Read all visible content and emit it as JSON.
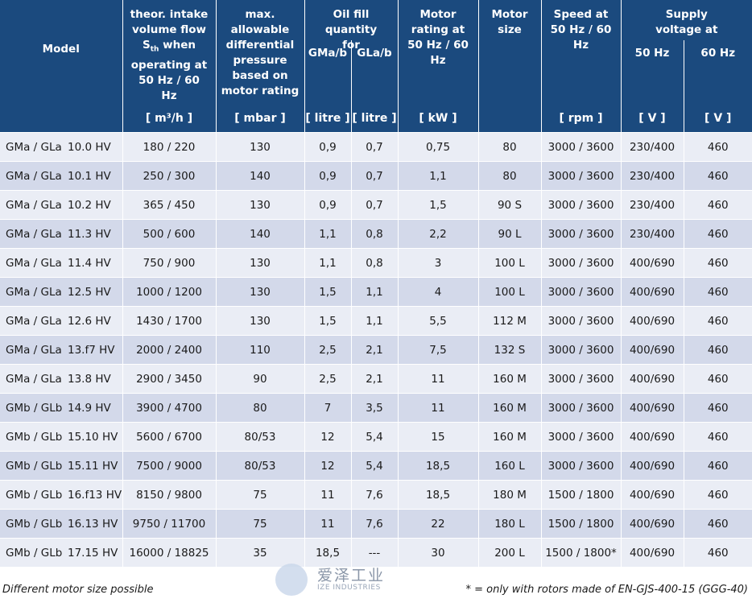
{
  "headers": {
    "model": "Model",
    "flow": "theor. intake volume flow S",
    "flow_sub": "th",
    "flow_rest": "when operating at 50 Hz / 60 Hz",
    "flow_unit": "[ m³/h ]",
    "pressure": "max. allowable differential pressure based on motor rating",
    "pressure_unit": "[ mbar ]",
    "oil": "Oil fill quantity for",
    "oil_a": "GMa/b",
    "oil_a_unit": "[ litre ]",
    "oil_b": "GLa/b",
    "oil_b_unit": "[ litre ]",
    "rating": "Motor rating at 50 Hz / 60 Hz",
    "rating_unit": "[ kW ]",
    "size": "Motor size",
    "speed": "Speed at 50 Hz / 60 Hz",
    "speed_unit": "[ rpm ]",
    "voltage": "Supply voltage at",
    "volt_50": "50 Hz",
    "volt_50_unit": "[ V ]",
    "volt_60": "60 Hz",
    "volt_60_unit": "[ V ]"
  },
  "rows": [
    [
      "GMa / GLa",
      "10.0 HV",
      "180 / 220",
      "130",
      "0,9",
      "0,7",
      "0,75",
      "80",
      "3000 / 3600",
      "230/400",
      "460"
    ],
    [
      "GMa / GLa",
      "10.1 HV",
      "250 / 300",
      "140",
      "0,9",
      "0,7",
      "1,1",
      "80",
      "3000 / 3600",
      "230/400",
      "460"
    ],
    [
      "GMa / GLa",
      "10.2 HV",
      "365 / 450",
      "130",
      "0,9",
      "0,7",
      "1,5",
      "90 S",
      "3000 / 3600",
      "230/400",
      "460"
    ],
    [
      "GMa / GLa",
      "11.3 HV",
      "500 / 600",
      "140",
      "1,1",
      "0,8",
      "2,2",
      "90 L",
      "3000 / 3600",
      "230/400",
      "460"
    ],
    [
      "GMa / GLa",
      "11.4 HV",
      "750 / 900",
      "130",
      "1,1",
      "0,8",
      "3",
      "100 L",
      "3000 / 3600",
      "400/690",
      "460"
    ],
    [
      "GMa / GLa",
      "12.5 HV",
      "1000 / 1200",
      "130",
      "1,5",
      "1,1",
      "4",
      "100 L",
      "3000 / 3600",
      "400/690",
      "460"
    ],
    [
      "GMa / GLa",
      "12.6 HV",
      "1430 / 1700",
      "130",
      "1,5",
      "1,1",
      "5,5",
      "112 M",
      "3000 / 3600",
      "400/690",
      "460"
    ],
    [
      "GMa / GLa",
      "13.f7 HV",
      "2000 / 2400",
      "110",
      "2,5",
      "2,1",
      "7,5",
      "132 S",
      "3000 / 3600",
      "400/690",
      "460"
    ],
    [
      "GMa / GLa",
      "13.8 HV",
      "2900 / 3450",
      "90",
      "2,5",
      "2,1",
      "11",
      "160 M",
      "3000 / 3600",
      "400/690",
      "460"
    ],
    [
      "GMb / GLb",
      "14.9 HV",
      "3900 / 4700",
      "80",
      "7",
      "3,5",
      "11",
      "160 M",
      "3000 / 3600",
      "400/690",
      "460"
    ],
    [
      "GMb / GLb",
      "15.10 HV",
      "5600 / 6700",
      "80/53",
      "12",
      "5,4",
      "15",
      "160 M",
      "3000 / 3600",
      "400/690",
      "460"
    ],
    [
      "GMb / GLb",
      "15.11 HV",
      "7500 / 9000",
      "80/53",
      "12",
      "5,4",
      "18,5",
      "160 L",
      "3000 / 3600",
      "400/690",
      "460"
    ],
    [
      "GMb / GLb",
      "16.f13 HV",
      "8150 / 9800",
      "75",
      "11",
      "7,6",
      "18,5",
      "180 M",
      "1500 / 1800",
      "400/690",
      "460"
    ],
    [
      "GMb / GLb",
      "16.13 HV",
      "9750 / 11700",
      "75",
      "11",
      "7,6",
      "22",
      "180 L",
      "1500 / 1800",
      "400/690",
      "460"
    ],
    [
      "GMb / GLb",
      "17.15 HV",
      "16000 / 18825",
      "35",
      "18,5",
      "---",
      "30",
      "200 L",
      "1500 / 1800*",
      "400/690",
      "460"
    ]
  ],
  "footer": {
    "left": "Different motor size possible",
    "right": "* = only with rotors made of EN-GJS-400-15 (GGG-40)"
  },
  "watermark": {
    "cn": "爱泽工业",
    "en": "IZE INDUSTRIES"
  },
  "colors": {
    "header_bg": "#1b4a7e",
    "row_light": "#eaedf5",
    "row_dark": "#d3d9ea"
  }
}
